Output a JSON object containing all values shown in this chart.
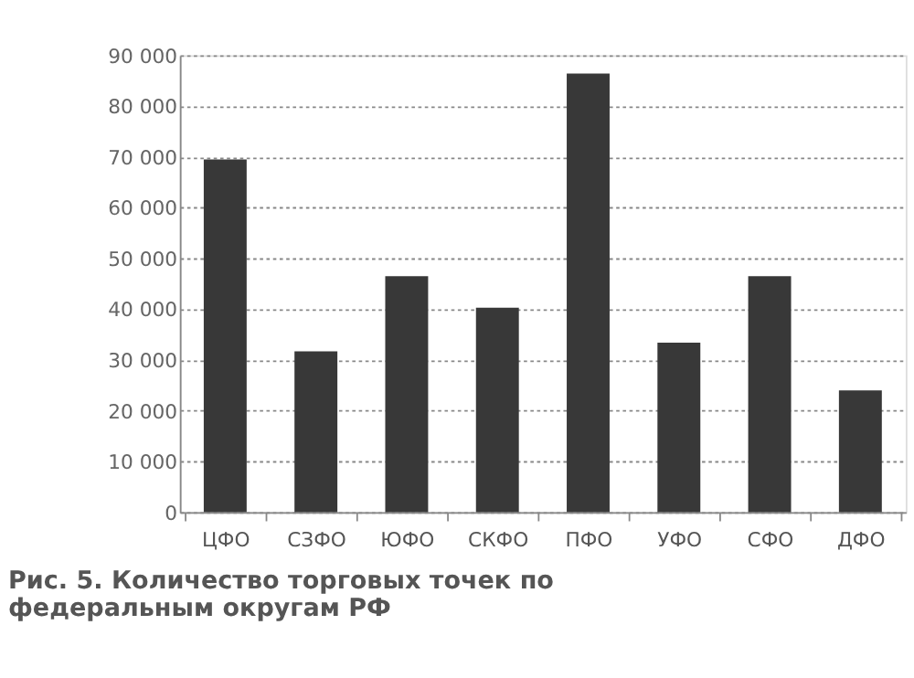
{
  "chart_data": {
    "type": "bar",
    "title": "Рис. 5. Количество торговых точек по федеральным округам РФ",
    "categories": [
      "ЦФО",
      "СЗФО",
      "ЮФО",
      "СКФО",
      "ПФО",
      "УФО",
      "СФО",
      "ДФО"
    ],
    "values": [
      69500,
      31700,
      46500,
      40300,
      86400,
      33400,
      46500,
      24000
    ],
    "color": "#383838",
    "ylim": [
      0,
      90000
    ],
    "yticks": [
      0,
      {
        "value": 10000,
        "label": "10 000"
      },
      {
        "value": 20000,
        "label": "20 000"
      },
      {
        "value": 30000,
        "label": "30 000"
      },
      {
        "value": 40000,
        "label": "40 000"
      },
      {
        "value": 50000,
        "label": "50 000"
      },
      {
        "value": 60000,
        "label": "60 000"
      },
      {
        "value": 70000,
        "label": "70 000"
      },
      {
        "value": 80000,
        "label": "80 000"
      },
      {
        "value": 90000,
        "label": "90 000"
      }
    ],
    "grid": "y"
  }
}
